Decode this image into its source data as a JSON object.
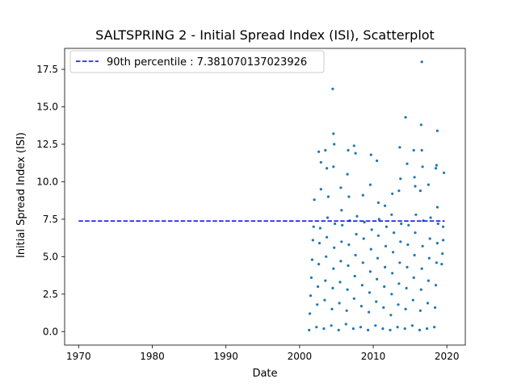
{
  "chart_data": {
    "type": "scatter",
    "title": "SALTSPRING 2 - Initial Spread Index (ISI), Scatterplot",
    "xlabel": "Date",
    "ylabel": "Initial Spread Index (ISI)",
    "xlim": [
      1968.1,
      2022.5
    ],
    "ylim": [
      -0.9,
      18.9
    ],
    "xticks": [
      1970,
      1980,
      1990,
      2000,
      2010,
      2020
    ],
    "xtick_labels": [
      "1970",
      "1980",
      "1990",
      "2000",
      "2010",
      "2020"
    ],
    "yticks": [
      0.0,
      2.5,
      5.0,
      7.5,
      10.0,
      12.5,
      15.0,
      17.5
    ],
    "ytick_labels": [
      "0.0",
      "2.5",
      "5.0",
      "7.5",
      "10.0",
      "12.5",
      "15.0",
      "17.5"
    ],
    "grid": false,
    "legend_position": "top-left",
    "reference_line": {
      "label": "90th percentile : 7.381070137023926",
      "y": 7.381070137023926,
      "x_range": [
        1970.0,
        2019.7
      ],
      "style": "dashed",
      "color": "#0000ff"
    },
    "series": [
      {
        "marker_color": "#1f77b4",
        "points": [
          [
            2001.3,
            0.1
          ],
          [
            2001.4,
            1.2
          ],
          [
            2001.5,
            2.4
          ],
          [
            2001.6,
            3.6
          ],
          [
            2001.7,
            4.8
          ],
          [
            2001.8,
            6.1
          ],
          [
            2001.9,
            7.0
          ],
          [
            2002.0,
            8.8
          ],
          [
            2002.3,
            0.3
          ],
          [
            2002.4,
            1.8
          ],
          [
            2002.5,
            3.0
          ],
          [
            2002.6,
            4.5
          ],
          [
            2002.7,
            5.9
          ],
          [
            2002.8,
            6.9
          ],
          [
            2002.9,
            9.5
          ],
          [
            2002.6,
            12.0
          ],
          [
            2002.9,
            11.3
          ],
          [
            2003.3,
            0.2
          ],
          [
            2003.4,
            2.1
          ],
          [
            2003.5,
            3.4
          ],
          [
            2003.6,
            5.0
          ],
          [
            2003.7,
            6.3
          ],
          [
            2003.8,
            7.6
          ],
          [
            2003.9,
            9.0
          ],
          [
            2003.5,
            12.1
          ],
          [
            2003.7,
            10.9
          ],
          [
            2004.3,
            0.4
          ],
          [
            2004.4,
            1.5
          ],
          [
            2004.5,
            2.9
          ],
          [
            2004.6,
            4.2
          ],
          [
            2004.7,
            5.6
          ],
          [
            2004.8,
            7.2
          ],
          [
            2004.5,
            16.2
          ],
          [
            2004.6,
            13.2
          ],
          [
            2004.7,
            12.5
          ],
          [
            2004.6,
            11.0
          ],
          [
            2005.3,
            0.1
          ],
          [
            2005.4,
            1.9
          ],
          [
            2005.5,
            3.3
          ],
          [
            2005.6,
            4.7
          ],
          [
            2005.7,
            6.0
          ],
          [
            2005.8,
            7.1
          ],
          [
            2005.6,
            9.6
          ],
          [
            2005.7,
            8.1
          ],
          [
            2006.3,
            0.5
          ],
          [
            2006.4,
            1.4
          ],
          [
            2006.5,
            2.8
          ],
          [
            2006.6,
            4.4
          ],
          [
            2006.7,
            5.8
          ],
          [
            2006.8,
            7.4
          ],
          [
            2006.6,
            12.1
          ],
          [
            2006.5,
            10.5
          ],
          [
            2006.7,
            9.0
          ],
          [
            2007.3,
            0.2
          ],
          [
            2007.4,
            2.2
          ],
          [
            2007.5,
            3.7
          ],
          [
            2007.6,
            5.1
          ],
          [
            2007.7,
            6.5
          ],
          [
            2007.8,
            7.7
          ],
          [
            2007.4,
            12.4
          ],
          [
            2007.6,
            11.9
          ],
          [
            2008.3,
            0.3
          ],
          [
            2008.4,
            1.7
          ],
          [
            2008.5,
            3.1
          ],
          [
            2008.6,
            4.6
          ],
          [
            2008.7,
            6.2
          ],
          [
            2008.8,
            7.3
          ],
          [
            2008.6,
            9.1
          ],
          [
            2009.3,
            0.1
          ],
          [
            2009.4,
            1.3
          ],
          [
            2009.5,
            2.6
          ],
          [
            2009.6,
            4.0
          ],
          [
            2009.7,
            5.5
          ],
          [
            2009.8,
            6.8
          ],
          [
            2009.7,
            11.8
          ],
          [
            2009.6,
            9.8
          ],
          [
            2010.3,
            0.4
          ],
          [
            2010.4,
            2.0
          ],
          [
            2010.5,
            3.5
          ],
          [
            2010.6,
            4.9
          ],
          [
            2010.7,
            6.4
          ],
          [
            2010.8,
            7.5
          ],
          [
            2010.5,
            11.4
          ],
          [
            2010.7,
            8.6
          ],
          [
            2011.3,
            0.2
          ],
          [
            2011.4,
            1.6
          ],
          [
            2011.5,
            3.0
          ],
          [
            2011.6,
            4.3
          ],
          [
            2011.7,
            5.7
          ],
          [
            2011.8,
            7.0
          ],
          [
            2011.6,
            8.4
          ],
          [
            2012.3,
            0.1
          ],
          [
            2012.4,
            1.1
          ],
          [
            2012.5,
            2.5
          ],
          [
            2012.6,
            3.9
          ],
          [
            2012.7,
            5.3
          ],
          [
            2012.8,
            6.6
          ],
          [
            2012.6,
            9.2
          ],
          [
            2012.5,
            7.8
          ],
          [
            2013.3,
            0.3
          ],
          [
            2013.4,
            1.8
          ],
          [
            2013.5,
            3.2
          ],
          [
            2013.6,
            4.6
          ],
          [
            2013.7,
            6.0
          ],
          [
            2013.8,
            7.2
          ],
          [
            2013.6,
            12.3
          ],
          [
            2013.7,
            10.2
          ],
          [
            2013.5,
            9.4
          ],
          [
            2014.3,
            0.2
          ],
          [
            2014.4,
            1.5
          ],
          [
            2014.5,
            2.9
          ],
          [
            2014.6,
            4.3
          ],
          [
            2014.7,
            5.8
          ],
          [
            2014.8,
            7.1
          ],
          [
            2014.4,
            14.3
          ],
          [
            2014.6,
            11.2
          ],
          [
            2015.3,
            0.4
          ],
          [
            2015.4,
            2.1
          ],
          [
            2015.5,
            3.6
          ],
          [
            2015.6,
            5.1
          ],
          [
            2015.7,
            6.6
          ],
          [
            2015.8,
            7.8
          ],
          [
            2015.5,
            12.1
          ],
          [
            2015.6,
            10.3
          ],
          [
            2015.7,
            9.7
          ],
          [
            2016.3,
            0.1
          ],
          [
            2016.4,
            1.4
          ],
          [
            2016.5,
            2.8
          ],
          [
            2016.6,
            4.2
          ],
          [
            2016.7,
            5.7
          ],
          [
            2016.8,
            7.4
          ],
          [
            2016.6,
            18.0
          ],
          [
            2016.5,
            13.8
          ],
          [
            2016.6,
            12.1
          ],
          [
            2016.7,
            11.0
          ],
          [
            2016.4,
            9.4
          ],
          [
            2017.3,
            0.2
          ],
          [
            2017.4,
            1.9
          ],
          [
            2017.5,
            3.4
          ],
          [
            2017.6,
            4.9
          ],
          [
            2017.7,
            6.2
          ],
          [
            2017.8,
            7.6
          ],
          [
            2017.5,
            9.8
          ],
          [
            2018.3,
            0.3
          ],
          [
            2018.4,
            1.6
          ],
          [
            2018.5,
            3.1
          ],
          [
            2018.6,
            4.6
          ],
          [
            2018.7,
            5.9
          ],
          [
            2018.8,
            7.2
          ],
          [
            2018.7,
            13.4
          ],
          [
            2018.6,
            11.1
          ],
          [
            2018.5,
            10.9
          ],
          [
            2018.7,
            8.3
          ],
          [
            2019.3,
            4.5
          ],
          [
            2019.4,
            5.2
          ],
          [
            2019.5,
            6.1
          ],
          [
            2019.6,
            10.6
          ],
          [
            2019.5,
            7.0
          ]
        ]
      }
    ]
  }
}
